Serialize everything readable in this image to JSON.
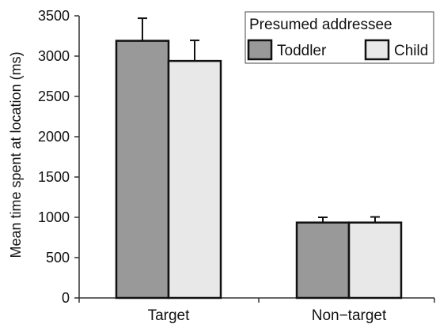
{
  "chart_data": {
    "type": "bar",
    "categories": [
      "Target",
      "Non−target"
    ],
    "series": [
      {
        "name": "Toddler",
        "values": [
          3190,
          935
        ],
        "errors": [
          280,
          65
        ],
        "color": "#999999"
      },
      {
        "name": "Child",
        "values": [
          2940,
          935
        ],
        "errors": [
          255,
          70
        ],
        "color": "#e8e8e8"
      }
    ],
    "ylabel": "Mean time spent at location (ms)",
    "ylim": [
      0,
      3500
    ],
    "yticks": [
      0,
      500,
      1000,
      1500,
      2000,
      2500,
      3000,
      3500
    ],
    "legend": {
      "title": "Presumed addressee",
      "placement": "top-right"
    },
    "grid": false
  }
}
